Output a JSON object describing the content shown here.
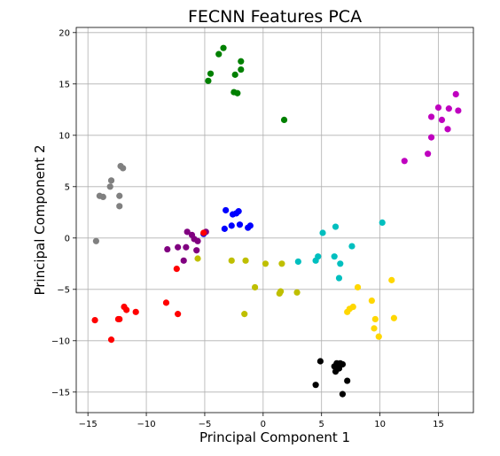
{
  "chart_data": {
    "type": "scatter",
    "title": "FECNN Features PCA",
    "xlabel": "Principal Component 1",
    "ylabel": "Principal Component 2",
    "xlim": [
      -16,
      18
    ],
    "ylim": [
      -17,
      20.5
    ],
    "xticks": [
      -15,
      -10,
      -5,
      0,
      5,
      10,
      15
    ],
    "yticks": [
      -15,
      -10,
      -5,
      0,
      5,
      10,
      15,
      20
    ],
    "grid": true,
    "series": [
      {
        "color": "#008000",
        "points": [
          [
            -3.4,
            18.5
          ],
          [
            -3.8,
            17.9
          ],
          [
            -1.9,
            17.2
          ],
          [
            -4.5,
            16.0
          ],
          [
            -2.4,
            15.9
          ],
          [
            -1.9,
            16.4
          ],
          [
            -4.7,
            15.3
          ],
          [
            -2.5,
            14.2
          ],
          [
            -2.2,
            14.1
          ],
          [
            1.8,
            11.5
          ]
        ]
      },
      {
        "color": "#bf00bf",
        "points": [
          [
            16.5,
            14.0
          ],
          [
            15.0,
            12.7
          ],
          [
            15.9,
            12.6
          ],
          [
            16.7,
            12.4
          ],
          [
            14.4,
            11.8
          ],
          [
            15.3,
            11.5
          ],
          [
            15.8,
            10.6
          ],
          [
            14.4,
            9.8
          ],
          [
            14.1,
            8.2
          ],
          [
            12.1,
            7.5
          ]
        ]
      },
      {
        "color": "#808080",
        "points": [
          [
            -12.2,
            7.0
          ],
          [
            -12.0,
            6.8
          ],
          [
            -13.0,
            5.6
          ],
          [
            -13.1,
            5.0
          ],
          [
            -14.0,
            4.1
          ],
          [
            -13.7,
            4.0
          ],
          [
            -12.3,
            4.1
          ],
          [
            -12.3,
            3.1
          ],
          [
            -14.3,
            -0.3
          ]
        ]
      },
      {
        "color": "#0000ff",
        "points": [
          [
            -3.2,
            2.7
          ],
          [
            -2.1,
            2.6
          ],
          [
            -2.6,
            2.3
          ],
          [
            -2.3,
            2.4
          ],
          [
            -1.1,
            1.2
          ],
          [
            -2.7,
            1.2
          ],
          [
            -2.0,
            1.3
          ],
          [
            -1.3,
            1.0
          ],
          [
            -3.3,
            0.9
          ],
          [
            -5.1,
            0.4
          ]
        ]
      },
      {
        "color": "#800080",
        "points": [
          [
            -4.9,
            0.6
          ],
          [
            -6.5,
            0.6
          ],
          [
            -6.1,
            0.3
          ],
          [
            -5.9,
            -0.1
          ],
          [
            -5.6,
            -0.3
          ],
          [
            -6.6,
            -0.9
          ],
          [
            -7.3,
            -0.9
          ],
          [
            -8.2,
            -1.1
          ],
          [
            -5.7,
            -1.2
          ],
          [
            -6.8,
            -2.2
          ]
        ]
      },
      {
        "color": "#bfbf00",
        "points": [
          [
            -5.6,
            -2.0
          ],
          [
            -2.7,
            -2.2
          ],
          [
            -1.5,
            -2.2
          ],
          [
            0.2,
            -2.5
          ],
          [
            1.6,
            -2.5
          ],
          [
            -0.7,
            -4.8
          ],
          [
            1.5,
            -5.2
          ],
          [
            1.4,
            -5.4
          ],
          [
            2.9,
            -5.3
          ],
          [
            -1.6,
            -7.4
          ]
        ]
      },
      {
        "color": "#00bfbf",
        "points": [
          [
            10.2,
            1.5
          ],
          [
            6.2,
            1.1
          ],
          [
            5.1,
            0.5
          ],
          [
            7.6,
            -0.8
          ],
          [
            4.7,
            -1.8
          ],
          [
            6.1,
            -1.8
          ],
          [
            4.5,
            -2.2
          ],
          [
            3.0,
            -2.3
          ],
          [
            6.6,
            -2.5
          ],
          [
            6.5,
            -3.9
          ]
        ]
      },
      {
        "color": "#ffd700",
        "points": [
          [
            8.1,
            -4.8
          ],
          [
            11.0,
            -4.1
          ],
          [
            9.3,
            -6.1
          ],
          [
            7.7,
            -6.7
          ],
          [
            7.4,
            -6.9
          ],
          [
            7.2,
            -7.2
          ],
          [
            9.6,
            -7.9
          ],
          [
            11.2,
            -7.8
          ],
          [
            9.5,
            -8.8
          ],
          [
            9.9,
            -9.6
          ]
        ]
      },
      {
        "color": "#ff0000",
        "points": [
          [
            -5.1,
            0.5
          ],
          [
            -7.4,
            -3.0
          ],
          [
            -8.3,
            -6.3
          ],
          [
            -11.9,
            -6.7
          ],
          [
            -11.7,
            -7.0
          ],
          [
            -10.9,
            -7.2
          ],
          [
            -7.3,
            -7.4
          ],
          [
            -12.4,
            -7.9
          ],
          [
            -12.3,
            -7.9
          ],
          [
            -14.4,
            -8.0
          ],
          [
            -13.0,
            -9.9
          ]
        ]
      },
      {
        "color": "#000000",
        "points": [
          [
            4.9,
            -12.0
          ],
          [
            6.3,
            -12.2
          ],
          [
            6.6,
            -12.2
          ],
          [
            6.8,
            -12.3
          ],
          [
            6.1,
            -12.5
          ],
          [
            6.5,
            -12.7
          ],
          [
            6.2,
            -13.0
          ],
          [
            7.2,
            -13.9
          ],
          [
            4.5,
            -14.3
          ],
          [
            6.8,
            -15.2
          ]
        ]
      }
    ]
  }
}
